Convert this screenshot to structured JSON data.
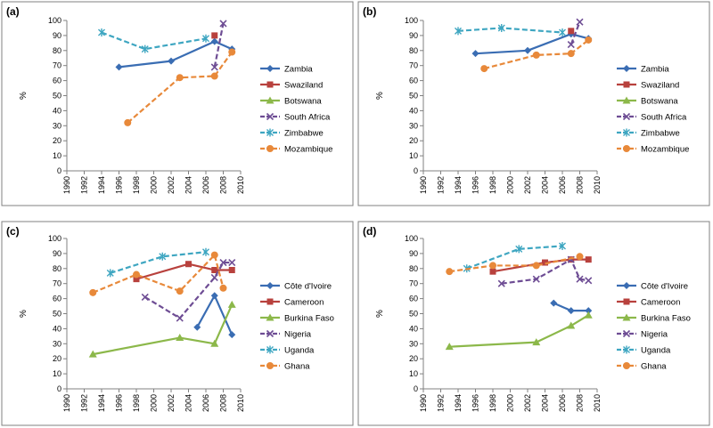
{
  "palette": {
    "blue": "#3a6db3",
    "red": "#b8413d",
    "green": "#8cb84a",
    "purple": "#6e4d94",
    "teal": "#3ea6c1",
    "orange": "#e8893a"
  },
  "chart_data": [
    {
      "panel": "(a)",
      "type": "line",
      "ylabel": "%",
      "xlabel": "",
      "xlim": [
        1990,
        2010
      ],
      "xticks": [
        "1990",
        "1992",
        "1994",
        "1996",
        "1998",
        "2000",
        "2002",
        "2004",
        "2006",
        "2008",
        "2010"
      ],
      "ylim": [
        0,
        100
      ],
      "yticks": [
        "0",
        "10",
        "20",
        "30",
        "40",
        "50",
        "60",
        "70",
        "80",
        "90",
        "100"
      ],
      "legend_position": "right",
      "series": [
        {
          "name": "Zambia",
          "color": "#3a6db3",
          "marker": "diamond",
          "dash": false,
          "x": [
            1996,
            2002,
            2007,
            2009
          ],
          "y": [
            69,
            73,
            86,
            81
          ]
        },
        {
          "name": "Swaziland",
          "color": "#b8413d",
          "marker": "square",
          "dash": false,
          "x": [
            2007
          ],
          "y": [
            90
          ]
        },
        {
          "name": "Botswana",
          "color": "#8cb84a",
          "marker": "triangle",
          "dash": false,
          "x": [],
          "y": []
        },
        {
          "name": "South Africa",
          "color": "#6e4d94",
          "marker": "x",
          "dash": true,
          "x": [
            2007,
            2008
          ],
          "y": [
            69,
            98
          ]
        },
        {
          "name": "Zimbabwe",
          "color": "#3ea6c1",
          "marker": "star",
          "dash": true,
          "x": [
            1994,
            1999,
            2006
          ],
          "y": [
            92,
            81,
            88
          ]
        },
        {
          "name": "Mozambique",
          "color": "#e8893a",
          "marker": "circle",
          "dash": true,
          "x": [
            1997,
            2003,
            2007,
            2009
          ],
          "y": [
            32,
            62,
            63,
            79
          ]
        }
      ]
    },
    {
      "panel": "(b)",
      "type": "line",
      "ylabel": "%",
      "xlabel": "",
      "xlim": [
        1990,
        2010
      ],
      "xticks": [
        "1990",
        "1992",
        "1994",
        "1996",
        "1998",
        "2000",
        "2002",
        "2004",
        "2006",
        "2008",
        "2010"
      ],
      "ylim": [
        0,
        100
      ],
      "yticks": [
        "0",
        "10",
        "20",
        "30",
        "40",
        "50",
        "60",
        "70",
        "80",
        "90",
        "100"
      ],
      "legend_position": "right",
      "series": [
        {
          "name": "Zambia",
          "color": "#3a6db3",
          "marker": "diamond",
          "dash": false,
          "x": [
            1996,
            2002,
            2007,
            2009
          ],
          "y": [
            78,
            80,
            91,
            88
          ]
        },
        {
          "name": "Swaziland",
          "color": "#b8413d",
          "marker": "square",
          "dash": false,
          "x": [
            2007
          ],
          "y": [
            93
          ]
        },
        {
          "name": "Botswana",
          "color": "#8cb84a",
          "marker": "triangle",
          "dash": false,
          "x": [],
          "y": []
        },
        {
          "name": "South Africa",
          "color": "#6e4d94",
          "marker": "x",
          "dash": true,
          "x": [
            2007,
            2008
          ],
          "y": [
            84,
            99
          ]
        },
        {
          "name": "Zimbabwe",
          "color": "#3ea6c1",
          "marker": "star",
          "dash": true,
          "x": [
            1994,
            1999,
            2006
          ],
          "y": [
            93,
            95,
            92
          ]
        },
        {
          "name": "Mozambique",
          "color": "#e8893a",
          "marker": "circle",
          "dash": true,
          "x": [
            1997,
            2003,
            2007,
            2009
          ],
          "y": [
            68,
            77,
            78,
            87
          ]
        }
      ]
    },
    {
      "panel": "(c)",
      "type": "line",
      "ylabel": "%",
      "xlabel": "",
      "xlim": [
        1990,
        2010
      ],
      "xticks": [
        "1990",
        "1992",
        "1994",
        "1996",
        "1998",
        "2000",
        "2002",
        "2004",
        "2006",
        "2008",
        "2010"
      ],
      "ylim": [
        0,
        100
      ],
      "yticks": [
        "0",
        "10",
        "20",
        "30",
        "40",
        "50",
        "60",
        "70",
        "80",
        "90",
        "100"
      ],
      "legend_position": "right",
      "series": [
        {
          "name": "Côte d'Ivoire",
          "color": "#3a6db3",
          "marker": "diamond",
          "dash": false,
          "x": [
            2005,
            2007,
            2009
          ],
          "y": [
            41,
            62,
            36
          ]
        },
        {
          "name": "Cameroon",
          "color": "#b8413d",
          "marker": "square",
          "dash": false,
          "x": [
            1998,
            2004,
            2007,
            2009
          ],
          "y": [
            73,
            83,
            79,
            79
          ]
        },
        {
          "name": "Burkina Faso",
          "color": "#8cb84a",
          "marker": "triangle",
          "dash": false,
          "x": [
            1993,
            2003,
            2007,
            2009
          ],
          "y": [
            23,
            34,
            30,
            56
          ]
        },
        {
          "name": "Nigeria",
          "color": "#6e4d94",
          "marker": "x",
          "dash": true,
          "x": [
            1999,
            2003,
            2007,
            2008,
            2009
          ],
          "y": [
            61,
            47,
            74,
            84,
            84
          ]
        },
        {
          "name": "Uganda",
          "color": "#3ea6c1",
          "marker": "star",
          "dash": true,
          "x": [
            1995,
            2001,
            2006
          ],
          "y": [
            77,
            88,
            91
          ]
        },
        {
          "name": "Ghana",
          "color": "#e8893a",
          "marker": "circle",
          "dash": true,
          "x": [
            1993,
            1998,
            2003,
            2007,
            2008
          ],
          "y": [
            64,
            76,
            65,
            89,
            67
          ]
        }
      ]
    },
    {
      "panel": "(d)",
      "type": "line",
      "ylabel": "%",
      "xlabel": "",
      "xlim": [
        1990,
        2010
      ],
      "xticks": [
        "1990",
        "1992",
        "1994",
        "1996",
        "1998",
        "2000",
        "2002",
        "2004",
        "2006",
        "2008",
        "2010"
      ],
      "ylim": [
        0,
        100
      ],
      "yticks": [
        "0",
        "10",
        "20",
        "30",
        "40",
        "50",
        "60",
        "70",
        "80",
        "90",
        "100"
      ],
      "legend_position": "right",
      "series": [
        {
          "name": "Côte d'Ivoire",
          "color": "#3a6db3",
          "marker": "diamond",
          "dash": false,
          "x": [
            2005,
            2007,
            2009
          ],
          "y": [
            57,
            52,
            52
          ]
        },
        {
          "name": "Cameroon",
          "color": "#b8413d",
          "marker": "square",
          "dash": false,
          "x": [
            1998,
            2004,
            2007,
            2009
          ],
          "y": [
            78,
            84,
            86,
            86
          ]
        },
        {
          "name": "Burkina Faso",
          "color": "#8cb84a",
          "marker": "triangle",
          "dash": false,
          "x": [
            1993,
            2003,
            2007,
            2009
          ],
          "y": [
            28,
            31,
            42,
            49
          ]
        },
        {
          "name": "Nigeria",
          "color": "#6e4d94",
          "marker": "x",
          "dash": true,
          "x": [
            1999,
            2003,
            2007,
            2008,
            2009
          ],
          "y": [
            70,
            73,
            86,
            73,
            72
          ]
        },
        {
          "name": "Uganda",
          "color": "#3ea6c1",
          "marker": "star",
          "dash": true,
          "x": [
            1995,
            2001,
            2006
          ],
          "y": [
            80,
            93,
            95
          ]
        },
        {
          "name": "Ghana",
          "color": "#e8893a",
          "marker": "circle",
          "dash": true,
          "x": [
            1993,
            1998,
            2003,
            2008
          ],
          "y": [
            78,
            82,
            82,
            88
          ]
        }
      ]
    }
  ]
}
